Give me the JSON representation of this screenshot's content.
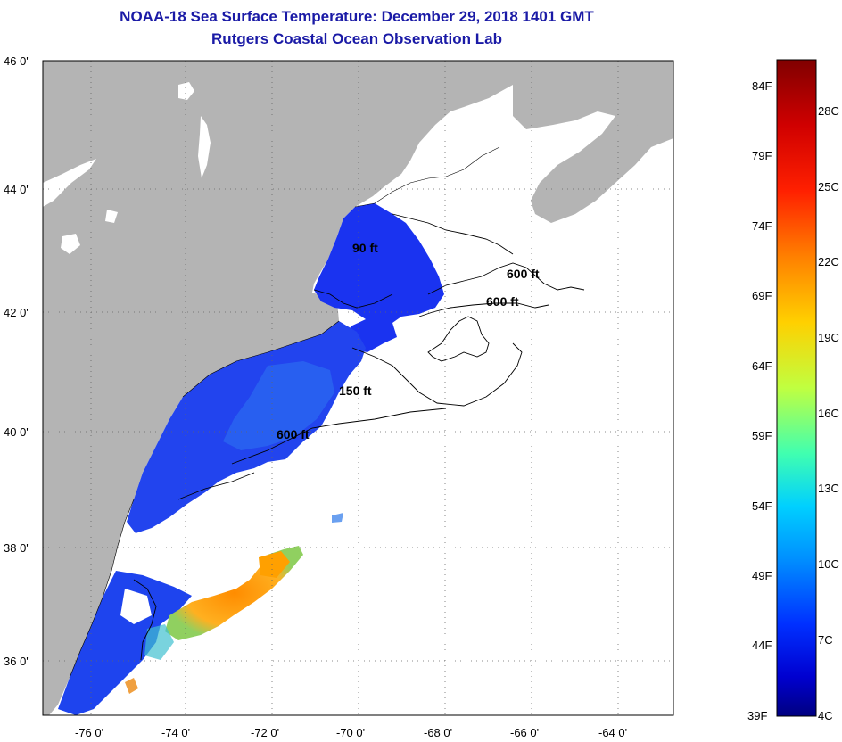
{
  "title": "NOAA-18 Sea Surface Temperature:  December 29, 2018 1401 GMT",
  "subtitle": "Rutgers Coastal Ocean Observation Lab",
  "map": {
    "lat_ticks": [
      "46 0'",
      "44 0'",
      "42 0'",
      "40 0'",
      "38 0'",
      "36 0'"
    ],
    "lon_ticks": [
      "-76 0'",
      "-74 0'",
      "-72 0'",
      "-70 0'",
      "-68 0'",
      "-66 0'",
      "-64 0'"
    ],
    "contours": [
      "600 ft",
      "600 ft",
      "150 ft",
      "600 ft",
      "90 ft"
    ],
    "land_color": "#b4b4b4",
    "cloud_color": "#ffffff"
  },
  "colorbar": {
    "f_labels": [
      "84F",
      "79F",
      "74F",
      "69F",
      "64F",
      "59F",
      "54F",
      "49F",
      "44F",
      "39F"
    ],
    "c_labels": [
      "28C",
      "25C",
      "22C",
      "19C",
      "16C",
      "13C",
      "10C",
      "7C",
      "4C"
    ],
    "colors": [
      "#800000",
      "#ff0000",
      "#ff8000",
      "#ffff00",
      "#80ff80",
      "#00ffff",
      "#0080ff",
      "#0000ff",
      "#000080"
    ]
  }
}
